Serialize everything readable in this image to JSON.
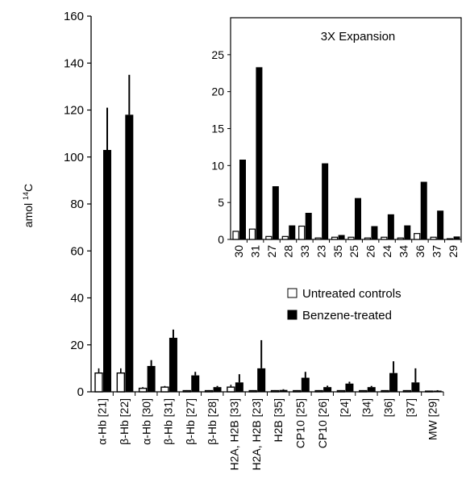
{
  "chart_data": [
    {
      "type": "bar",
      "ylabel": "amol ",
      "ylabel_sup": "14",
      "ylabel_suffix": "C",
      "ylim": [
        0,
        160
      ],
      "yticks": [
        0,
        20,
        40,
        60,
        80,
        100,
        120,
        140,
        160
      ],
      "categories": [
        "α-Hb [21]",
        "β-Hb [22]",
        "α-Hb [30]",
        "β-Hb [31]",
        "β-Hb [27]",
        "β-Hb [28]",
        "H2A, H2B [33]",
        "H2A, H2B [23]",
        "H2B [35]",
        "CP10 [25]",
        "CP10 [26]",
        "[24]",
        "[34]",
        "[36]",
        "[37]",
        "MW [29]"
      ],
      "series": [
        {
          "name": "Untreated controls",
          "color": "#ffffff",
          "values": [
            8,
            8,
            1.5,
            2,
            0.5,
            0.5,
            2,
            0.5,
            0.5,
            0.5,
            0.5,
            0.5,
            0.5,
            0.5,
            0.5,
            0.3
          ],
          "errors": [
            2,
            2,
            0.5,
            0.5,
            0.2,
            0.2,
            1,
            0.2,
            0.2,
            0.2,
            0.2,
            0.2,
            0.2,
            0.2,
            0.2,
            0.1
          ]
        },
        {
          "name": "Benzene-treated",
          "color": "#000000",
          "values": [
            103,
            118,
            11,
            23,
            7,
            2,
            4,
            10,
            0.8,
            6,
            2,
            3.5,
            2,
            8,
            4,
            0.5
          ],
          "errors": [
            18,
            17,
            2.5,
            3.5,
            1.5,
            0.5,
            3.5,
            12,
            0.3,
            2.5,
            0.6,
            0.8,
            0.5,
            5,
            6,
            0.2
          ]
        }
      ]
    },
    {
      "type": "bar",
      "title": "3X Expansion",
      "ylim": [
        0,
        30
      ],
      "yticks": [
        0,
        5,
        10,
        15,
        20,
        25
      ],
      "categories": [
        "30",
        "31",
        "27",
        "28",
        "33",
        "23",
        "35",
        "25",
        "26",
        "24",
        "34",
        "36",
        "37",
        "29"
      ],
      "series": [
        {
          "name": "Untreated controls",
          "values": [
            1.1,
            1.4,
            0.4,
            0.4,
            1.8,
            0.2,
            0.3,
            0.3,
            0.2,
            0.3,
            0.2,
            0.8,
            0.3,
            0.1
          ]
        },
        {
          "name": "Benzene-treated",
          "values": [
            10.8,
            23.3,
            7.2,
            1.9,
            3.6,
            10.3,
            0.6,
            5.6,
            1.8,
            3.4,
            1.9,
            7.8,
            3.9,
            0.4
          ]
        }
      ]
    }
  ],
  "legend": {
    "untreated": "Untreated controls",
    "benzene": "Benzene-treated"
  }
}
